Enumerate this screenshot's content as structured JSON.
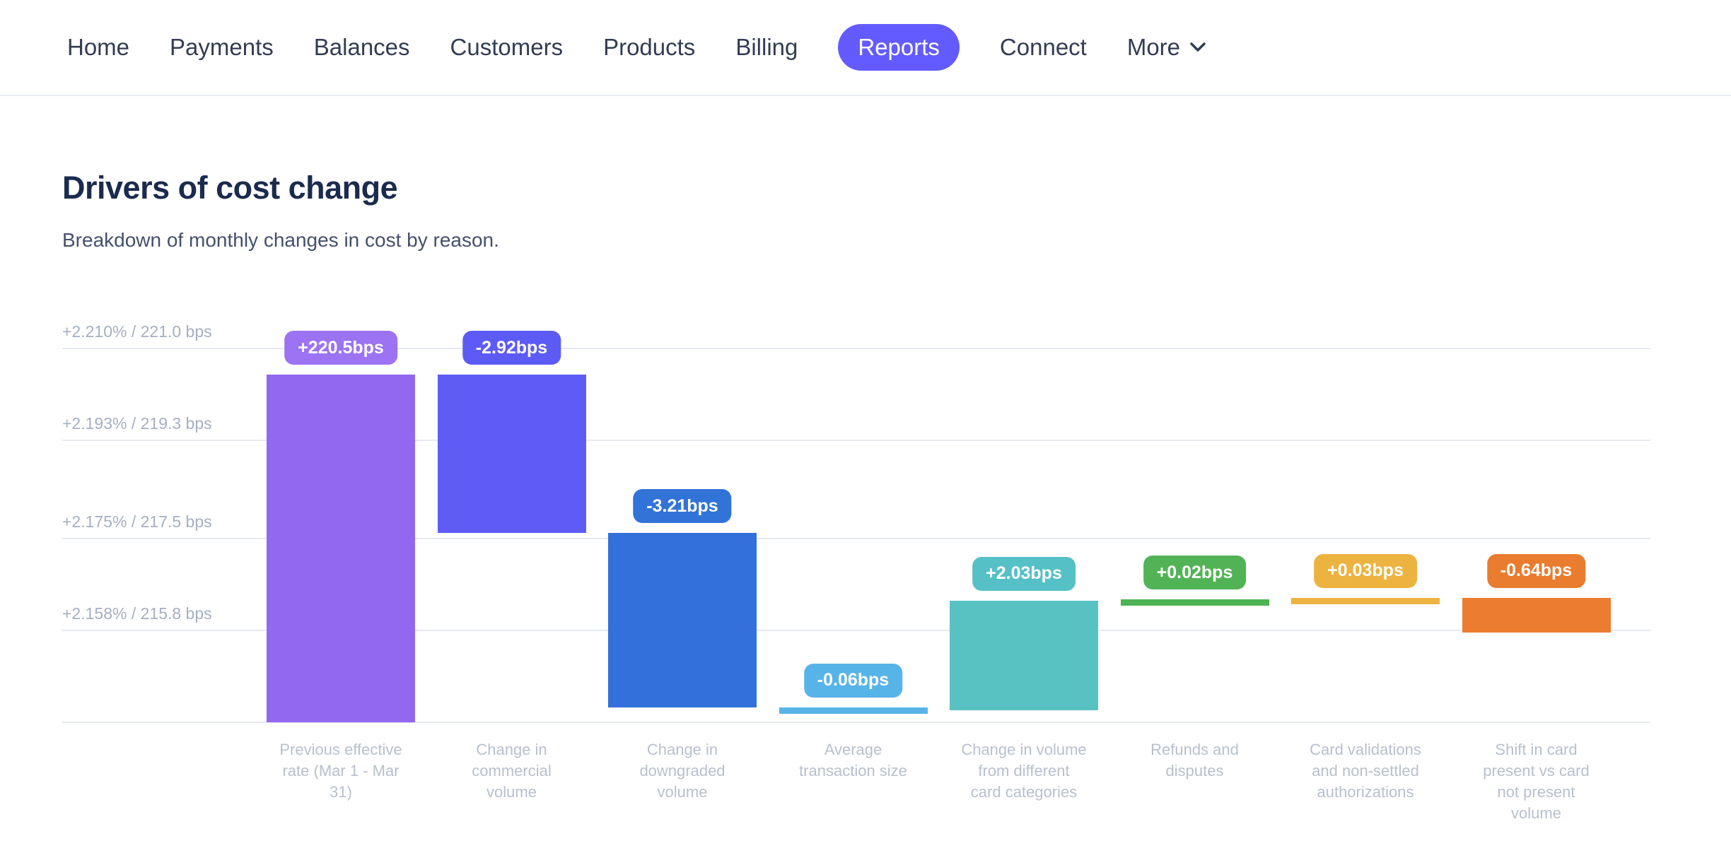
{
  "nav": {
    "items": [
      {
        "label": "Home",
        "active": false
      },
      {
        "label": "Payments",
        "active": false
      },
      {
        "label": "Balances",
        "active": false
      },
      {
        "label": "Customers",
        "active": false
      },
      {
        "label": "Products",
        "active": false
      },
      {
        "label": "Billing",
        "active": false
      },
      {
        "label": "Reports",
        "active": true
      },
      {
        "label": "Connect",
        "active": false
      },
      {
        "label": "More",
        "active": false,
        "has_chevron": true
      }
    ]
  },
  "header": {
    "title": "Drivers of cost change",
    "subtitle": "Breakdown of monthly changes in cost by reason."
  },
  "chart_data": {
    "type": "bar",
    "subtype": "waterfall",
    "title": "Drivers of cost change",
    "unit": "bps",
    "grid": true,
    "legend": false,
    "first_bar_is_total": true,
    "categories": [
      "Previous effective rate (Mar 1 - Mar 31)",
      "Change in commercial volume",
      "Change in downgraded volume",
      "Average transaction size",
      "Change in volume from different card categories",
      "Refunds and disputes",
      "Card validations and non-settled authorizations",
      "Shift in card present vs card not present volume"
    ],
    "category_lines": [
      [
        "Previous effective",
        "rate (Mar 1 - Mar",
        "31)"
      ],
      [
        "Change in",
        "commercial",
        "volume"
      ],
      [
        "Change in",
        "downgraded",
        "volume"
      ],
      [
        "Average",
        "transaction size"
      ],
      [
        "Change in volume",
        "from different",
        "card categories"
      ],
      [
        "Refunds and",
        "disputes"
      ],
      [
        "Card validations",
        "and non-settled",
        "authorizations"
      ],
      [
        "Shift in card",
        "present vs card",
        "not present",
        "volume"
      ]
    ],
    "category_ids": [
      "previous-effective-rate",
      "commercial-volume",
      "downgraded-volume",
      "average-transaction-size",
      "card-categories",
      "refunds-and-disputes",
      "card-validations",
      "card-present-shift"
    ],
    "values_bps": [
      220.5,
      -2.92,
      -3.21,
      -0.06,
      2.03,
      0.02,
      0.03,
      -0.64
    ],
    "value_labels": [
      "+220.5bps",
      "-2.92bps",
      "-3.21bps",
      "-0.06bps",
      "+2.03bps",
      "+0.02bps",
      "+0.03bps",
      "-0.64bps"
    ],
    "bar_colors": [
      "#9268F0",
      "#5E5CF5",
      "#3470DB",
      "#57B4E9",
      "#58C2C3",
      "#4FB254",
      "#EDB340",
      "#EC7D30"
    ],
    "pill_colors": [
      "#9C73F2",
      "#5D5BF6",
      "#3273D8",
      "#57B4E9",
      "#55C1C6",
      "#52B356",
      "#EDB340",
      "#E97C2E"
    ],
    "y_axis": {
      "tick_labels": [
        "+2.210% / 221.0 bps",
        "+2.193% / 219.3 bps",
        "+2.175% / 217.5 bps",
        "+2.158% / 215.8 bps"
      ],
      "tick_values_bps": [
        221.0,
        219.3,
        217.5,
        215.8
      ],
      "gridline_values_bps": [
        221.0,
        219.3,
        217.5,
        215.8,
        214.1
      ],
      "range_bps": [
        214.1,
        221.0
      ]
    }
  },
  "colors": {
    "accent": "#635BFF",
    "nav_text": "#333C53",
    "title_text": "#1B2B4E",
    "subtitle_text": "#45506C",
    "axis_tick_text": "#A6AFC1",
    "category_text": "#B8C0CE",
    "gridline": "#E6E9EF"
  }
}
